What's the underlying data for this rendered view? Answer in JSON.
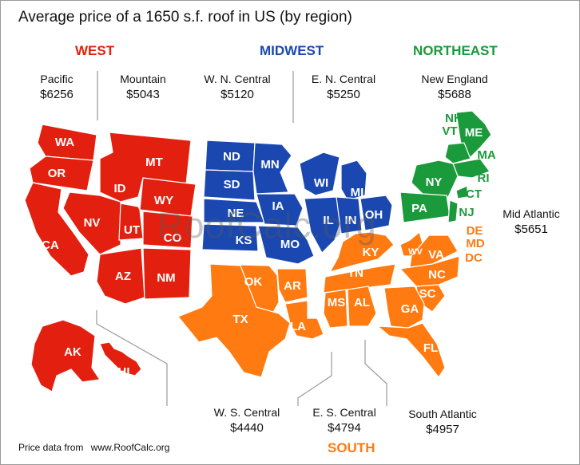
{
  "title": "Average price of a 1650 s.f. roof in US (by region)",
  "watermark": "RoofCalc.org",
  "colors": {
    "west": "#e3200f",
    "midwest": "#1a48b0",
    "northeast": "#1a9a3a",
    "south": "#ff7a10"
  },
  "regions": {
    "west": {
      "label": "WEST",
      "subregions": [
        {
          "name": "Pacific",
          "price": "$6256"
        },
        {
          "name": "Mountain",
          "price": "$5043"
        }
      ]
    },
    "midwest": {
      "label": "MIDWEST",
      "subregions": [
        {
          "name": "W. N. Central",
          "price": "$5120"
        },
        {
          "name": "E. N. Central",
          "price": "$5250"
        }
      ]
    },
    "northeast": {
      "label": "NORTHEAST",
      "subregions": [
        {
          "name": "New England",
          "price": "$5688"
        },
        {
          "name": "Mid Atlantic",
          "price": "$5651"
        }
      ]
    },
    "south": {
      "label": "SOUTH",
      "subregions": [
        {
          "name": "W. S. Central",
          "price": "$4440"
        },
        {
          "name": "E. S. Central",
          "price": "$4794"
        },
        {
          "name": "South Atlantic",
          "price": "$4957"
        }
      ]
    }
  },
  "states": {
    "WA": "WA",
    "OR": "OR",
    "CA": "CA",
    "AK": "AK",
    "HI": "HI",
    "MT": "MT",
    "ID": "ID",
    "WY": "WY",
    "NV": "NV",
    "UT": "UT",
    "CO": "CO",
    "AZ": "AZ",
    "NM": "NM",
    "ND": "ND",
    "MN": "MN",
    "SD": "SD",
    "NE": "NE",
    "IA": "IA",
    "KS": "KS",
    "MO": "MO",
    "WI": "WI",
    "MI": "MI",
    "IL": "IL",
    "IN": "IN",
    "OH": "OH",
    "NH": "NH",
    "VT": "VT",
    "ME": "ME",
    "MA": "MA",
    "RI": "RI",
    "CT": "CT",
    "NY": "NY",
    "PA": "PA",
    "NJ": "NJ",
    "OK": "OK",
    "AR": "AR",
    "TX": "TX",
    "LA": "LA",
    "KY": "KY",
    "TN": "TN",
    "MS": "MS",
    "AL": "AL",
    "DE": "DE",
    "MD": "MD",
    "DC": "DC",
    "WV": "WV",
    "VA": "VA",
    "NC": "NC",
    "SC": "SC",
    "GA": "GA",
    "FL": "FL"
  },
  "footer": {
    "label": "Price data from",
    "source": "www.RoofCalc.org"
  }
}
